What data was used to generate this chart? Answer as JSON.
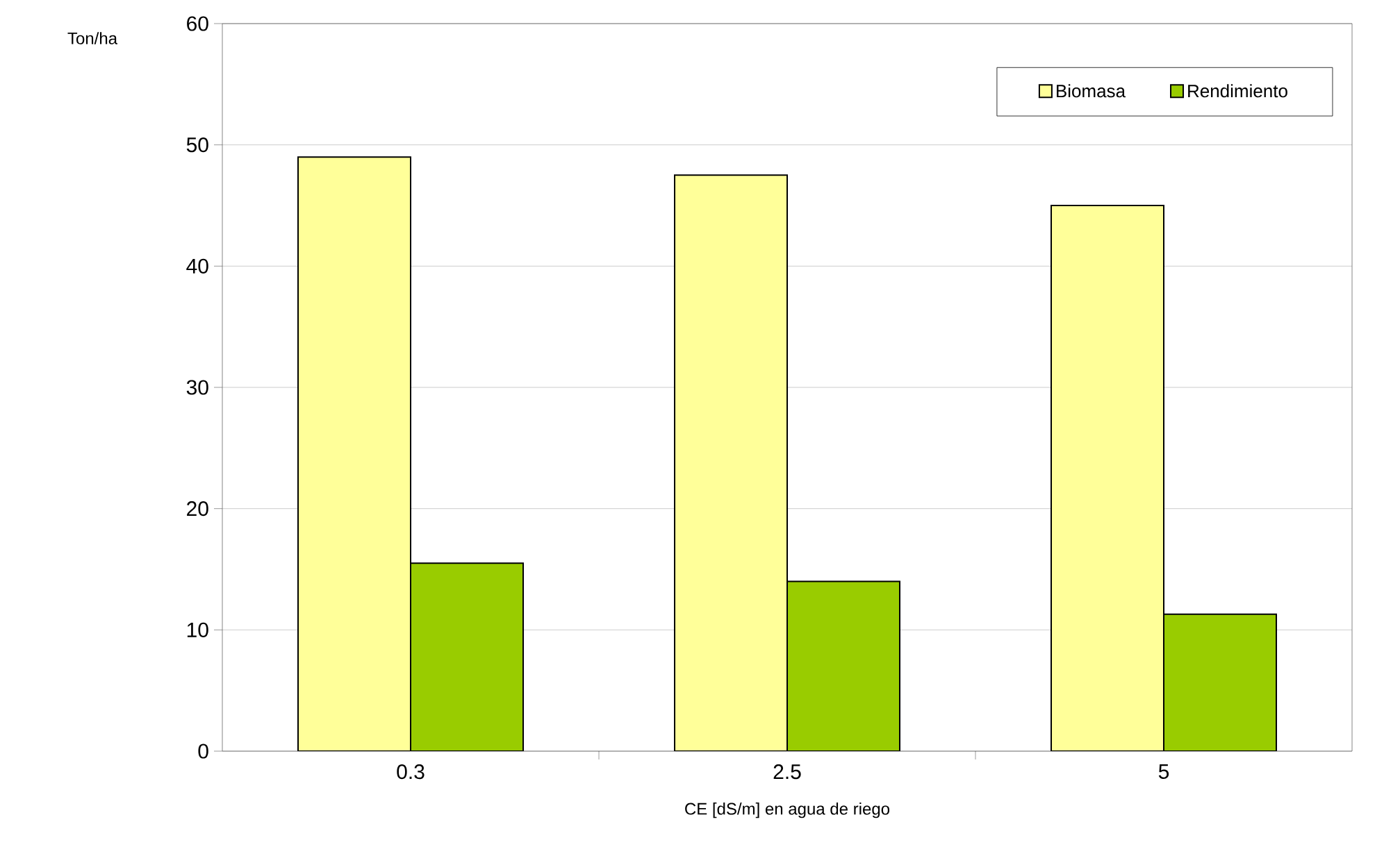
{
  "chart_data": {
    "type": "bar",
    "xlabel": "CE [dS/m] en agua de riego",
    "ylabel": "Ton/ha",
    "categories": [
      "0.3",
      "2.5",
      "5"
    ],
    "series": [
      {
        "name": "Biomasa",
        "color": "#ffff99",
        "values": [
          49,
          47.5,
          45
        ]
      },
      {
        "name": "Rendimiento",
        "color": "#99cc00",
        "values": [
          15.5,
          14,
          11.3
        ]
      }
    ],
    "ylim": [
      0,
      60
    ],
    "yticks": [
      0,
      10,
      20,
      30,
      40,
      50,
      60
    ],
    "grid": "y",
    "legend": "top right"
  }
}
